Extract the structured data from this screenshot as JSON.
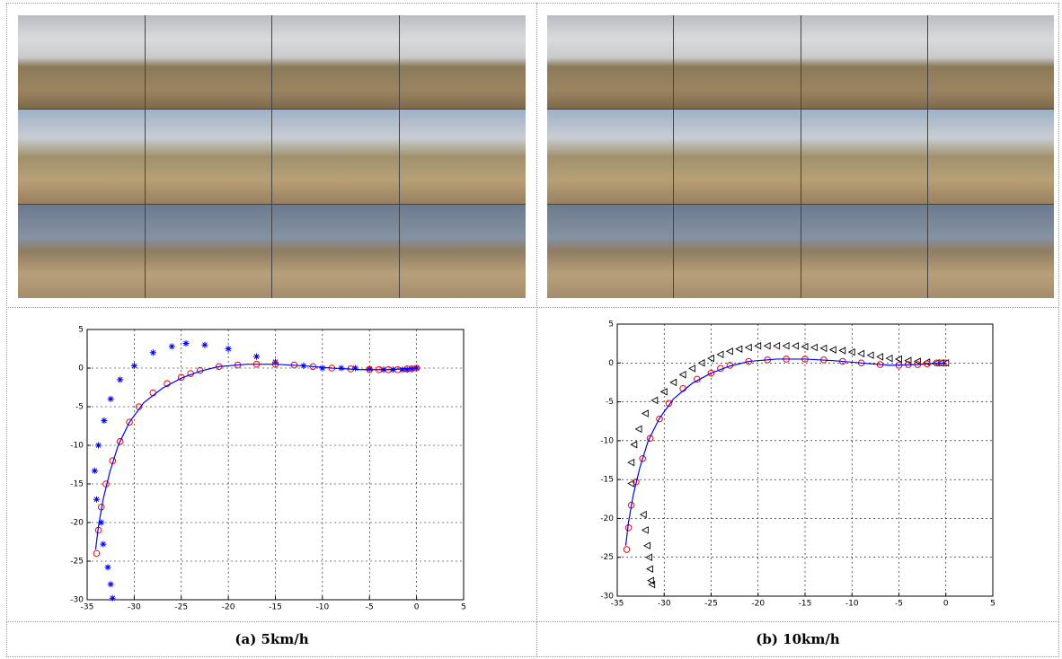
{
  "captions": [
    "(a) 5km/h",
    "(b) 10km/h"
  ],
  "chart_data": [
    {
      "type": "line",
      "xlim": [
        -35,
        5
      ],
      "ylim": [
        -30,
        5
      ],
      "xticks": [
        -35,
        -30,
        -25,
        -20,
        -15,
        -10,
        -5,
        0,
        5
      ],
      "yticks": [
        -30,
        -25,
        -20,
        -15,
        -10,
        -5,
        0,
        5
      ],
      "grid": true,
      "series": [
        {
          "color": "#0000ff",
          "marker": "star",
          "x": [
            0,
            -0.5,
            -1,
            -1.5,
            -2.5,
            -3.5,
            -5,
            -6.5,
            -8,
            -10,
            -12,
            -15,
            -17,
            -20,
            -22.5,
            -24.5,
            -26,
            -28,
            -30,
            -31.5,
            -32.5,
            -33.2,
            -33.8,
            -34.2,
            -34,
            -33.5,
            -33.3,
            -32.8,
            -32.5,
            -32.3
          ],
          "values": [
            0,
            -0.1,
            -0.2,
            -0.2,
            -0.2,
            -0.2,
            -0.1,
            0,
            0,
            0,
            0.3,
            0.8,
            1.5,
            2.5,
            3,
            3.2,
            2.8,
            2,
            0.3,
            -1.5,
            -4,
            -6.8,
            -10,
            -13.3,
            -17,
            -20,
            -22.8,
            -25.8,
            -28,
            -29.8
          ]
        },
        {
          "color": "#ff0000",
          "marker": "circle",
          "x": [
            0,
            -0.5,
            -1,
            -2,
            -3,
            -4,
            -5,
            -7,
            -9,
            -11,
            -13,
            -15,
            -17,
            -19,
            -21,
            -23,
            -24,
            -25,
            -26.5,
            -28,
            -29.5,
            -30.5,
            -31.5,
            -32.3,
            -33,
            -33.5,
            -33.8,
            -34
          ],
          "values": [
            0,
            -0.1,
            -0.1,
            -0.2,
            -0.2,
            -0.2,
            -0.2,
            -0.1,
            0,
            0.2,
            0.4,
            0.5,
            0.5,
            0.4,
            0.2,
            -0.3,
            -0.7,
            -1.2,
            -2,
            -3.2,
            -5,
            -7,
            -9.5,
            -12,
            -15,
            -18,
            -21,
            -24
          ]
        },
        {
          "color": "#0000ff",
          "marker": "none",
          "x": [
            0,
            -3,
            -6,
            -9,
            -12,
            -15,
            -18,
            -21,
            -23,
            -25,
            -27,
            -29,
            -30.5,
            -31.7,
            -32.6,
            -33.3,
            -33.8,
            -34.1
          ],
          "values": [
            0,
            -0.2,
            -0.2,
            0,
            0.3,
            0.5,
            0.5,
            0.2,
            -0.4,
            -1.3,
            -2.6,
            -4.5,
            -7,
            -10,
            -13.5,
            -17,
            -20.5,
            -23.5
          ]
        }
      ]
    },
    {
      "type": "line",
      "xlim": [
        -35,
        5
      ],
      "ylim": [
        -30,
        5
      ],
      "xticks": [
        -35,
        -30,
        -25,
        -20,
        -15,
        -10,
        -5,
        0,
        5
      ],
      "yticks": [
        -30,
        -25,
        -20,
        -15,
        -10,
        -5,
        0,
        5
      ],
      "grid": true,
      "series": [
        {
          "color": "#000000",
          "marker": "triangle-left",
          "x": [
            0,
            -0.5,
            -1,
            -2,
            -3,
            -4,
            -5,
            -6,
            -7,
            -8,
            -9,
            -10,
            -11,
            -12,
            -13,
            -14,
            -15,
            -16,
            -17,
            -18,
            -19,
            -20,
            -21,
            -22,
            -23,
            -24,
            -25,
            -26,
            -27,
            -28,
            -29,
            -30,
            -31,
            -32,
            -32.7,
            -33.2,
            -33.5,
            -33.5,
            -32.2,
            -32,
            -31.8,
            -31.6,
            -31.5,
            -31.4,
            -31.3
          ],
          "values": [
            0,
            0,
            0,
            0.1,
            0.2,
            0.3,
            0.5,
            0.6,
            0.8,
            1,
            1.2,
            1.4,
            1.6,
            1.7,
            1.9,
            2,
            2.1,
            2.2,
            2.2,
            2.2,
            2.2,
            2.2,
            2,
            1.8,
            1.5,
            1.1,
            0.6,
            0,
            -0.7,
            -1.5,
            -2.5,
            -3.7,
            -4.8,
            -6.5,
            -8.5,
            -10.5,
            -12.8,
            -15.5,
            -19.5,
            -21.5,
            -23.5,
            -25,
            -26.5,
            -28,
            -28.5
          ]
        },
        {
          "color": "#ff0000",
          "marker": "circle",
          "x": [
            0,
            -0.5,
            -1,
            -2,
            -3,
            -4,
            -5,
            -7,
            -9,
            -11,
            -13,
            -15,
            -17,
            -19,
            -21,
            -23,
            -24,
            -25,
            -26.5,
            -28,
            -29.5,
            -30.5,
            -31.5,
            -32.3,
            -33,
            -33.5,
            -33.8,
            -34
          ],
          "values": [
            0,
            0,
            0,
            -0.1,
            -0.2,
            -0.2,
            -0.3,
            -0.2,
            0,
            0.2,
            0.4,
            0.5,
            0.5,
            0.4,
            0.2,
            -0.3,
            -0.7,
            -1.3,
            -2.1,
            -3.3,
            -5.2,
            -7.2,
            -9.7,
            -12.3,
            -15.3,
            -18.3,
            -21.2,
            -24
          ]
        },
        {
          "color": "#0000ff",
          "marker": "none",
          "x": [
            0,
            -3,
            -6,
            -9,
            -12,
            -15,
            -18,
            -21,
            -23,
            -25,
            -27,
            -29,
            -30.5,
            -31.7,
            -32.6,
            -33.3,
            -33.8,
            -34.1
          ],
          "values": [
            0,
            -0.2,
            -0.3,
            0,
            0.3,
            0.5,
            0.5,
            0.2,
            -0.4,
            -1.3,
            -2.6,
            -4.6,
            -7.1,
            -10,
            -13.5,
            -17,
            -20.5,
            -23.5
          ]
        }
      ]
    }
  ]
}
